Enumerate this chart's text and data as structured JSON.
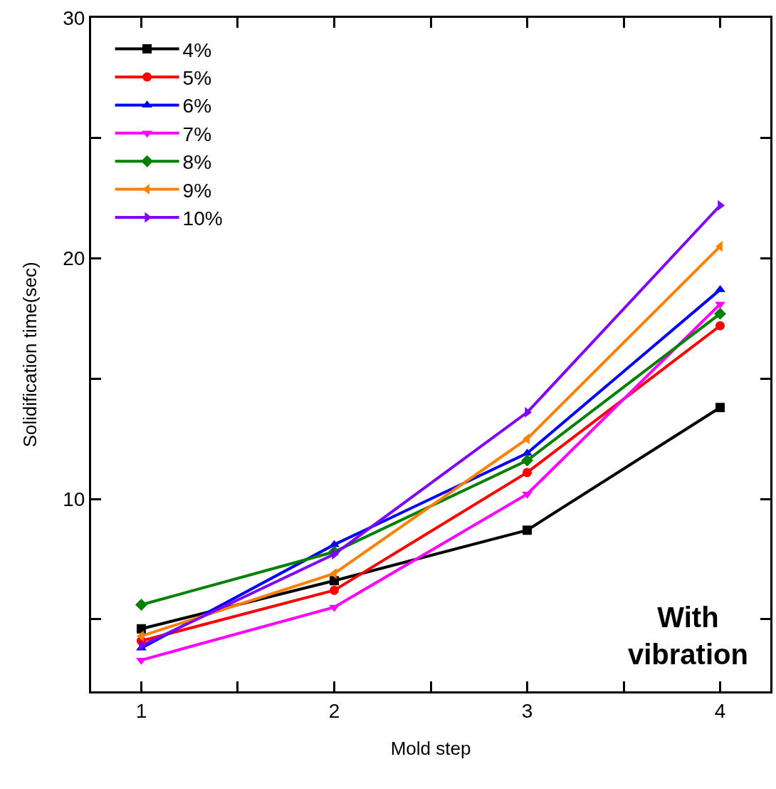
{
  "chart_data": {
    "type": "line",
    "xlabel": "Mold step",
    "ylabel": "Solidification time(sec)",
    "x": [
      1,
      2,
      3,
      4
    ],
    "xlim": [
      0.74,
      4.26
    ],
    "xticks": [
      1,
      {
        "value": 1.5,
        "label": null
      },
      2,
      {
        "value": 2.5,
        "label": null
      },
      3,
      {
        "value": 3.5,
        "label": null
      },
      4
    ],
    "ylim": [
      2,
      30
    ],
    "yticks": [
      {
        "value": 5,
        "label": null
      },
      10,
      {
        "value": 15,
        "label": null
      },
      20,
      {
        "value": 25,
        "label": null
      },
      30
    ],
    "grid": false,
    "legend": "top left",
    "line_style": "solid",
    "series": [
      {
        "name": "4%",
        "color": "#000000",
        "marker": "square",
        "values": [
          4.6,
          6.6,
          8.7,
          13.8
        ]
      },
      {
        "name": "5%",
        "color": "#ff0000",
        "marker": "circle",
        "values": [
          4.1,
          6.2,
          11.1,
          17.2
        ]
      },
      {
        "name": "6%",
        "color": "#0000ff",
        "marker": "triangle",
        "values": [
          3.8,
          8.1,
          11.9,
          18.7
        ]
      },
      {
        "name": "7%",
        "color": "#ff00ff",
        "marker": "triangle-down",
        "values": [
          3.3,
          5.5,
          10.2,
          18.1
        ]
      },
      {
        "name": "8%",
        "color": "#008000",
        "marker": "diamond",
        "values": [
          5.6,
          7.8,
          11.6,
          17.7
        ]
      },
      {
        "name": "9%",
        "color": "#ff8000",
        "marker": "triangle-left",
        "values": [
          4.3,
          6.9,
          12.5,
          20.5
        ]
      },
      {
        "name": "10%",
        "color": "#8000ff",
        "marker": "triangle-right",
        "values": [
          3.9,
          7.7,
          13.6,
          22.2
        ]
      }
    ],
    "annotations": [
      "With\nvibration"
    ]
  }
}
